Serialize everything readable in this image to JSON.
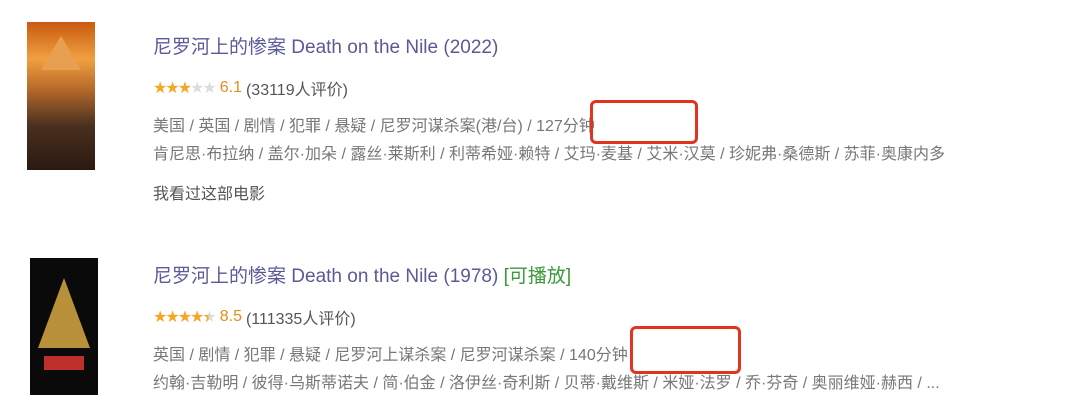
{
  "results": [
    {
      "title": "尼罗河上的惨案 Death on the Nile (2022)",
      "playable": "",
      "stars": 3,
      "score": "6.1",
      "votes": "(33119人评价)",
      "meta": "美国 / 英国 / 剧情 / 犯罪 / 悬疑 / 尼罗河谋杀案(港/台) / 127分钟",
      "cast": "肯尼思·布拉纳 / 盖尔·加朵 / 露丝·莱斯利 / 利蒂希娅·赖特 / 艾玛·麦基 / 艾米·汉莫 / 珍妮弗·桑德斯 / 苏菲·奥康内多",
      "watched": "我看过这部电影",
      "poster_text": "尼罗河上的惨案"
    },
    {
      "title": "尼罗河上的惨案 Death on the Nile (1978)",
      "playable": "[可播放]",
      "stars": 4.5,
      "score": "8.5",
      "votes": "(111335人评价)",
      "meta": "英国 / 剧情 / 犯罪 / 悬疑 / 尼罗河上谋杀案 / 尼罗河谋杀案 / 140分钟",
      "cast": "约翰·吉勒明 / 彼得·乌斯蒂诺夫 / 简·伯金 / 洛伊丝·奇利斯 / 贝蒂·戴维斯 / 米娅·法罗 / 乔·芬奇 / 奥丽维娅·赫西 / ...",
      "poster_text": "DEATH ON THE NILE"
    }
  ],
  "highlight_color": "#e0341f"
}
